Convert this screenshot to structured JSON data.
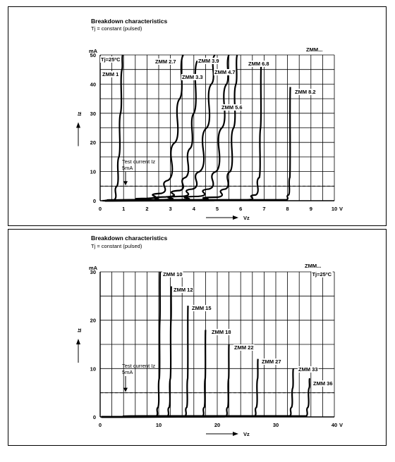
{
  "chart_data": [
    {
      "type": "line",
      "title": "Breakdown characteristics",
      "subtitle": "Tj = constant (pulsed)",
      "family_label": "ZMM...",
      "condition_label": "Tj=25ºC",
      "xlabel": "Vz",
      "x_unit": "V",
      "ylabel": "Iz",
      "y_unit": "mA",
      "xlim": [
        0,
        10
      ],
      "ylim": [
        0,
        50
      ],
      "x_ticks": [
        0,
        1,
        2,
        3,
        4,
        5,
        6,
        7,
        8,
        9,
        10
      ],
      "y_ticks": [
        0,
        10,
        20,
        30,
        40,
        50
      ],
      "grid": true,
      "test_current": {
        "label_line1": "Test current Iz",
        "label_line2": "5mA",
        "value": 5
      },
      "series": [
        {
          "name": "ZMM 1",
          "points": [
            [
              0.1,
              0
            ],
            [
              0.6,
              0.3
            ],
            [
              0.72,
              5
            ],
            [
              0.8,
              15
            ],
            [
              0.87,
              30
            ],
            [
              0.93,
              45
            ],
            [
              0.96,
              52
            ]
          ]
        },
        {
          "name": "ZMM 2.7",
          "points": [
            [
              0.2,
              0
            ],
            [
              1.2,
              0.3
            ],
            [
              2.0,
              0.8
            ],
            [
              2.6,
              2.5
            ],
            [
              2.9,
              7
            ],
            [
              3.2,
              20
            ],
            [
              3.4,
              35
            ],
            [
              3.55,
              50
            ]
          ]
        },
        {
          "name": "ZMM 3.3",
          "points": [
            [
              0.2,
              0
            ],
            [
              2.0,
              0.3
            ],
            [
              2.8,
              1.3
            ],
            [
              3.4,
              3.5
            ],
            [
              3.65,
              8
            ],
            [
              3.85,
              18
            ],
            [
              4.0,
              30
            ],
            [
              4.15,
              48
            ]
          ]
        },
        {
          "name": "ZMM 3.9",
          "points": [
            [
              0.2,
              0
            ],
            [
              2.5,
              0.3
            ],
            [
              3.5,
              1.5
            ],
            [
              3.95,
              4
            ],
            [
              4.25,
              10
            ],
            [
              4.55,
              25
            ],
            [
              4.75,
              40
            ],
            [
              4.9,
              50
            ]
          ]
        },
        {
          "name": "ZMM 4.7",
          "points": [
            [
              0.2,
              0
            ],
            [
              3.2,
              0.3
            ],
            [
              4.2,
              1.5
            ],
            [
              4.65,
              4
            ],
            [
              4.95,
              10
            ],
            [
              5.2,
              25
            ],
            [
              5.4,
              40
            ],
            [
              5.5,
              50
            ]
          ]
        },
        {
          "name": "ZMM 5.6",
          "points": [
            [
              0.2,
              0
            ],
            [
              4.0,
              0.3
            ],
            [
              5.0,
              1.2
            ],
            [
              5.35,
              4
            ],
            [
              5.55,
              10
            ],
            [
              5.7,
              25
            ],
            [
              5.8,
              40
            ],
            [
              5.85,
              50
            ]
          ]
        },
        {
          "name": "ZMM 6.8",
          "points": [
            [
              0.2,
              0
            ],
            [
              6.3,
              0.3
            ],
            [
              6.65,
              2
            ],
            [
              6.8,
              8
            ],
            [
              6.85,
              25
            ],
            [
              6.88,
              47
            ]
          ]
        },
        {
          "name": "ZMM 8.2",
          "points": [
            [
              0.2,
              0
            ],
            [
              7.95,
              0.3
            ],
            [
              8.05,
              2
            ],
            [
              8.1,
              8
            ],
            [
              8.12,
              39
            ]
          ]
        }
      ]
    },
    {
      "type": "line",
      "title": "Breakdown characteristics",
      "subtitle": "Tj = constant (pulsed)",
      "family_label": "ZMM...",
      "condition_label": "Tj=25ºC",
      "xlabel": "Vz",
      "x_unit": "V",
      "ylabel": "Iz",
      "y_unit": "mA",
      "xlim": [
        0,
        40
      ],
      "ylim": [
        0,
        30
      ],
      "x_ticks": [
        0,
        10,
        20,
        30,
        40
      ],
      "y_ticks": [
        0,
        10,
        20,
        30
      ],
      "grid": true,
      "test_current": {
        "label_line1": "Test current Iz",
        "label_line2": "5mA",
        "value": 5
      },
      "series": [
        {
          "name": "ZMM 10",
          "points": [
            [
              0.2,
              0
            ],
            [
              9.6,
              0.2
            ],
            [
              9.9,
              2
            ],
            [
              10.1,
              8
            ],
            [
              10.2,
              20
            ],
            [
              10.25,
              30
            ]
          ]
        },
        {
          "name": "ZMM 12",
          "points": [
            [
              0.2,
              0
            ],
            [
              11.5,
              0.2
            ],
            [
              11.8,
              2
            ],
            [
              12.0,
              8
            ],
            [
              12.1,
              20
            ],
            [
              12.15,
              27
            ]
          ]
        },
        {
          "name": "ZMM 15",
          "points": [
            [
              0.2,
              0
            ],
            [
              14.5,
              0.2
            ],
            [
              14.8,
              2
            ],
            [
              14.95,
              8
            ],
            [
              15.0,
              23
            ]
          ]
        },
        {
          "name": "ZMM 18",
          "points": [
            [
              0.2,
              0
            ],
            [
              17.5,
              0.2
            ],
            [
              17.8,
              2
            ],
            [
              17.95,
              8
            ],
            [
              18.0,
              18
            ]
          ]
        },
        {
          "name": "ZMM 22",
          "points": [
            [
              0.2,
              0
            ],
            [
              21.5,
              0.2
            ],
            [
              21.8,
              2
            ],
            [
              21.95,
              8
            ],
            [
              22.0,
              15
            ]
          ]
        },
        {
          "name": "ZMM 27",
          "points": [
            [
              0.2,
              0
            ],
            [
              26.4,
              0.2
            ],
            [
              26.7,
              2
            ],
            [
              26.9,
              8
            ],
            [
              26.95,
              12
            ]
          ]
        },
        {
          "name": "ZMM 33",
          "points": [
            [
              0.2,
              0
            ],
            [
              32.4,
              0.2
            ],
            [
              32.7,
              2
            ],
            [
              32.9,
              6
            ],
            [
              33.0,
              10
            ]
          ]
        },
        {
          "name": "ZMM 36",
          "points": [
            [
              0.2,
              0
            ],
            [
              35.2,
              0.2
            ],
            [
              35.5,
              2
            ],
            [
              35.7,
              6
            ],
            [
              35.8,
              8
            ]
          ]
        }
      ]
    }
  ]
}
